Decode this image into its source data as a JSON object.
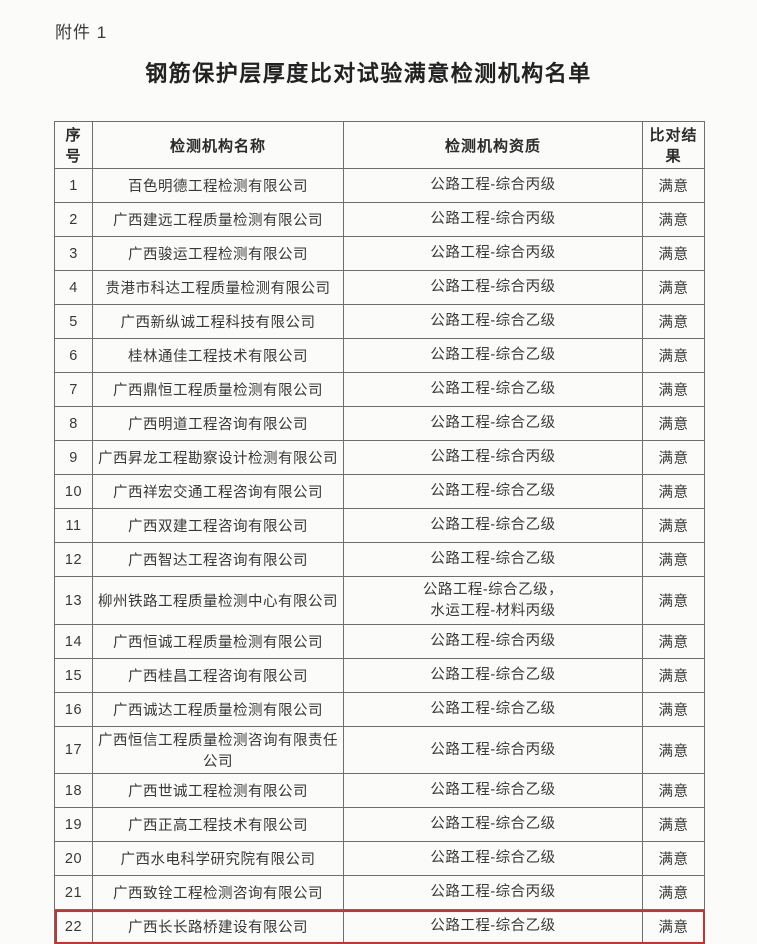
{
  "page": {
    "attachment_label": "附件 1",
    "title": "钢筋保护层厚度比对试验满意检测机构名单"
  },
  "table": {
    "headers": [
      "序号",
      "检测机构名称",
      "检测机构资质",
      "比对结果"
    ],
    "rows": [
      {
        "no": "1",
        "name": "百色明德工程检测有限公司",
        "qualification": "公路工程-综合丙级",
        "result": "满意"
      },
      {
        "no": "2",
        "name": "广西建远工程质量检测有限公司",
        "qualification": "公路工程-综合丙级",
        "result": "满意"
      },
      {
        "no": "3",
        "name": "广西骏运工程检测有限公司",
        "qualification": "公路工程-综合丙级",
        "result": "满意"
      },
      {
        "no": "4",
        "name": "贵港市科达工程质量检测有限公司",
        "qualification": "公路工程-综合丙级",
        "result": "满意"
      },
      {
        "no": "5",
        "name": "广西新纵诚工程科技有限公司",
        "qualification": "公路工程-综合乙级",
        "result": "满意"
      },
      {
        "no": "6",
        "name": "桂林通佳工程技术有限公司",
        "qualification": "公路工程-综合乙级",
        "result": "满意"
      },
      {
        "no": "7",
        "name": "广西鼎恒工程质量检测有限公司",
        "qualification": "公路工程-综合乙级",
        "result": "满意"
      },
      {
        "no": "8",
        "name": "广西明道工程咨询有限公司",
        "qualification": "公路工程-综合乙级",
        "result": "满意"
      },
      {
        "no": "9",
        "name": "广西昇龙工程勘察设计检测有限公司",
        "qualification": "公路工程-综合丙级",
        "result": "满意"
      },
      {
        "no": "10",
        "name": "广西祥宏交通工程咨询有限公司",
        "qualification": "公路工程-综合乙级",
        "result": "满意"
      },
      {
        "no": "11",
        "name": "广西双建工程咨询有限公司",
        "qualification": "公路工程-综合乙级",
        "result": "满意"
      },
      {
        "no": "12",
        "name": "广西智达工程咨询有限公司",
        "qualification": "公路工程-综合乙级",
        "result": "满意"
      },
      {
        "no": "13",
        "name": "柳州铁路工程质量检测中心有限公司",
        "qualification": "公路工程-综合乙级，\n水运工程-材料丙级",
        "result": "满意"
      },
      {
        "no": "14",
        "name": "广西恒诚工程质量检测有限公司",
        "qualification": "公路工程-综合丙级",
        "result": "满意"
      },
      {
        "no": "15",
        "name": "广西桂昌工程咨询有限公司",
        "qualification": "公路工程-综合乙级",
        "result": "满意"
      },
      {
        "no": "16",
        "name": "广西诚达工程质量检测有限公司",
        "qualification": "公路工程-综合乙级",
        "result": "满意"
      },
      {
        "no": "17",
        "name": "广西恒信工程质量检测咨询有限责任公司",
        "qualification": "公路工程-综合丙级",
        "result": "满意"
      },
      {
        "no": "18",
        "name": "广西世诚工程检测有限公司",
        "qualification": "公路工程-综合乙级",
        "result": "满意"
      },
      {
        "no": "19",
        "name": "广西正高工程技术有限公司",
        "qualification": "公路工程-综合乙级",
        "result": "满意"
      },
      {
        "no": "20",
        "name": "广西水电科学研究院有限公司",
        "qualification": "公路工程-综合乙级",
        "result": "满意"
      },
      {
        "no": "21",
        "name": "广西致铨工程检测咨询有限公司",
        "qualification": "公路工程-综合丙级",
        "result": "满意"
      },
      {
        "no": "22",
        "name": "广西长长路桥建设有限公司",
        "qualification": "公路工程-综合乙级",
        "result": "满意"
      }
    ],
    "highlight": {
      "row_no": "22",
      "color": "#c53333"
    }
  }
}
